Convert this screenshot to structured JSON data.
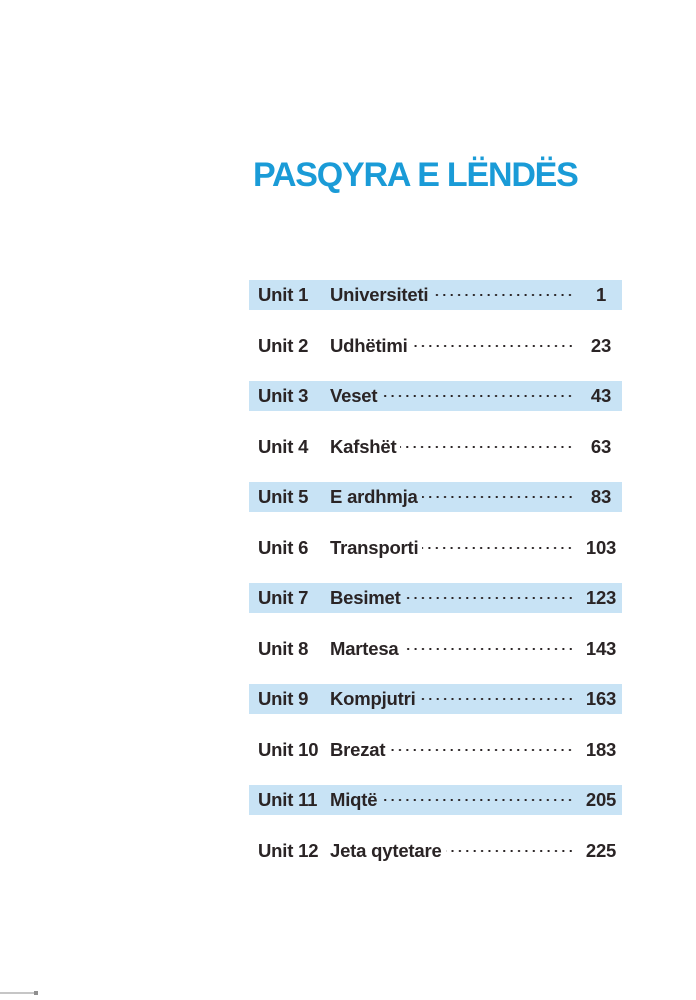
{
  "page": {
    "title": "PASQYRA E LËNDËS",
    "colors": {
      "title_blue": "#1a9bd7",
      "row_highlight": "#c8e3f5",
      "text": "#2a2425"
    }
  },
  "toc": {
    "rows": [
      {
        "unit_label": "Unit 1",
        "title": "Universiteti",
        "page": "1",
        "highlighted": true
      },
      {
        "unit_label": "Unit 2",
        "title": "Udhëtimi",
        "page": "23",
        "highlighted": false
      },
      {
        "unit_label": "Unit 3",
        "title": "Veset",
        "page": "43",
        "highlighted": true
      },
      {
        "unit_label": "Unit 4",
        "title": "Kafshët",
        "page": "63",
        "highlighted": false
      },
      {
        "unit_label": "Unit 5",
        "title": "E ardhmja",
        "page": "83",
        "highlighted": true
      },
      {
        "unit_label": "Unit 6",
        "title": "Transporti",
        "page": "103",
        "highlighted": false
      },
      {
        "unit_label": "Unit 7",
        "title": "Besimet",
        "page": "123",
        "highlighted": true
      },
      {
        "unit_label": "Unit 8",
        "title": "Martesa",
        "page": "143",
        "highlighted": false
      },
      {
        "unit_label": "Unit 9",
        "title": "Kompjutri",
        "page": "163",
        "highlighted": true
      },
      {
        "unit_label": "Unit 10",
        "title": "Brezat",
        "page": "183",
        "highlighted": false
      },
      {
        "unit_label": "Unit 11",
        "title": "Miqtë",
        "page": "205",
        "highlighted": true
      },
      {
        "unit_label": "Unit 12",
        "title": "Jeta qytetare",
        "page": "225",
        "highlighted": false
      }
    ]
  }
}
